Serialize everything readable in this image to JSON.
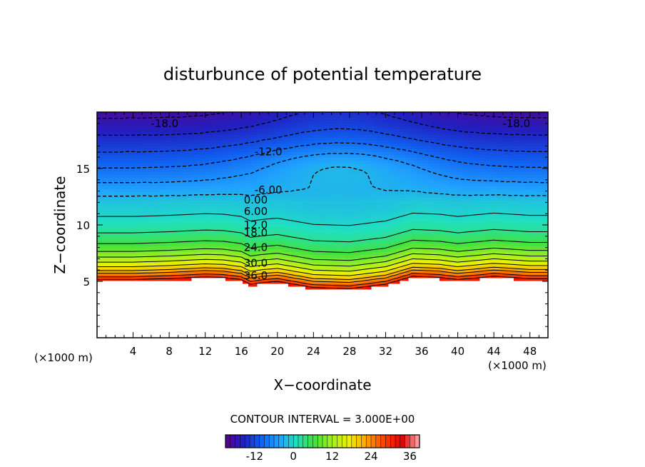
{
  "chart_data": {
    "type": "heatmap",
    "title": "disturbunce of potential temperature",
    "xlabel": "X−coordinate",
    "ylabel": "Z−coordinate",
    "x_unit_left": "(×1000 m)",
    "x_unit_right": "(×1000 m)",
    "xlim": [
      0,
      50
    ],
    "ylim": [
      0,
      20
    ],
    "x_ticks": [
      "4",
      "8",
      "12",
      "16",
      "20",
      "24",
      "28",
      "32",
      "36",
      "40",
      "44",
      "48"
    ],
    "y_ticks": [
      "5",
      "10",
      "15"
    ],
    "contour_interval_text": "CONTOUR INTERVAL = 3.000E+00",
    "contour_interval": 3,
    "value_range": [
      -21,
      39
    ],
    "surface_z": [
      [
        0,
        5.0
      ],
      [
        4,
        5.0
      ],
      [
        8,
        5.1
      ],
      [
        12,
        5.25
      ],
      [
        14,
        5.2
      ],
      [
        16,
        5.0
      ],
      [
        17,
        4.6
      ],
      [
        18.5,
        4.75
      ],
      [
        20,
        4.85
      ],
      [
        24,
        4.3
      ],
      [
        28,
        4.2
      ],
      [
        32,
        4.6
      ],
      [
        35,
        5.3
      ],
      [
        38,
        5.2
      ],
      [
        40,
        5.0
      ],
      [
        44,
        5.3
      ],
      [
        48,
        5.1
      ],
      [
        50,
        5.1
      ]
    ],
    "top_anomaly": {
      "x_center": 27,
      "width": 10
    },
    "contour_labels": [
      {
        "text": "36.0",
        "x": 17.6,
        "z": 5.5
      },
      {
        "text": "30.0",
        "x": 17.6,
        "z": 6.6
      },
      {
        "text": "24.0",
        "x": 17.6,
        "z": 8.0
      },
      {
        "text": "18.0",
        "x": 17.6,
        "z": 9.3
      },
      {
        "text": "12.0",
        "x": 17.6,
        "z": 10.0
      },
      {
        "text": "6.00",
        "x": 17.6,
        "z": 11.2
      },
      {
        "text": "0.00",
        "x": 17.6,
        "z": 12.2
      },
      {
        "text": "-6.00",
        "x": 19.0,
        "z": 13.1
      },
      {
        "text": "-12.0",
        "x": 19.0,
        "z": 16.5
      },
      {
        "text": "-18.0",
        "x": 7.5,
        "z": 19.0
      },
      {
        "text": "-18.0",
        "x": 46.5,
        "z": 19.0
      }
    ],
    "colorbar": {
      "min": -21,
      "max": 39,
      "ticks": [
        "-12",
        "0",
        "12",
        "24",
        "36"
      ],
      "tick_values": [
        -12,
        0,
        12,
        24,
        36
      ],
      "colors": [
        "#5a0090",
        "#2020c0",
        "#1060f0",
        "#20a0ff",
        "#20e0c0",
        "#40e040",
        "#a0f020",
        "#f0f000",
        "#ffa000",
        "#ff4000",
        "#e00000",
        "#ffb0b0"
      ]
    }
  }
}
